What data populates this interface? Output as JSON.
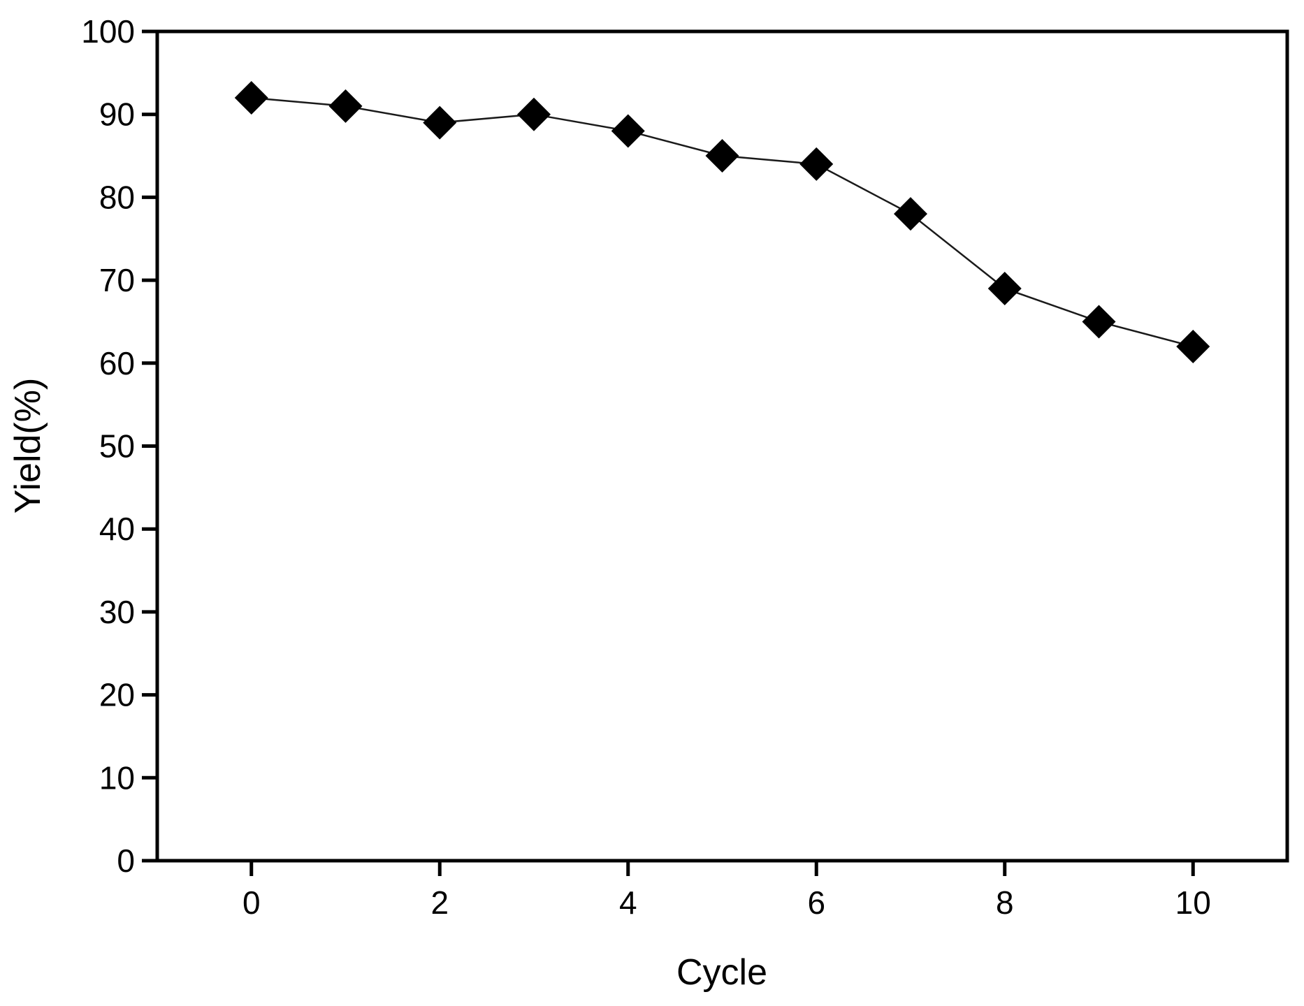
{
  "chart_data": {
    "type": "line",
    "title": "",
    "xlabel": "Cycle",
    "ylabel": "Yield(%)",
    "x": [
      0,
      1,
      2,
      3,
      4,
      5,
      6,
      7,
      8,
      9,
      10
    ],
    "series": [
      {
        "name": "Yield",
        "values": [
          92,
          91,
          89,
          90,
          88,
          85,
          84,
          78,
          69,
          65,
          62
        ]
      }
    ],
    "xlim": [
      -1,
      11
    ],
    "ylim": [
      0,
      100
    ],
    "x_ticks": [
      0,
      2,
      4,
      6,
      8,
      10
    ],
    "y_ticks": [
      0,
      10,
      20,
      30,
      40,
      50,
      60,
      70,
      80,
      90,
      100
    ],
    "grid": false,
    "legend": "none",
    "frame": "full-box",
    "tick_direction": "out",
    "marker": "diamond",
    "marker_color": "#000000",
    "line_color": "#1a1a1a",
    "axis_color": "#000000",
    "text_color": "#000000",
    "background": "#ffffff"
  }
}
